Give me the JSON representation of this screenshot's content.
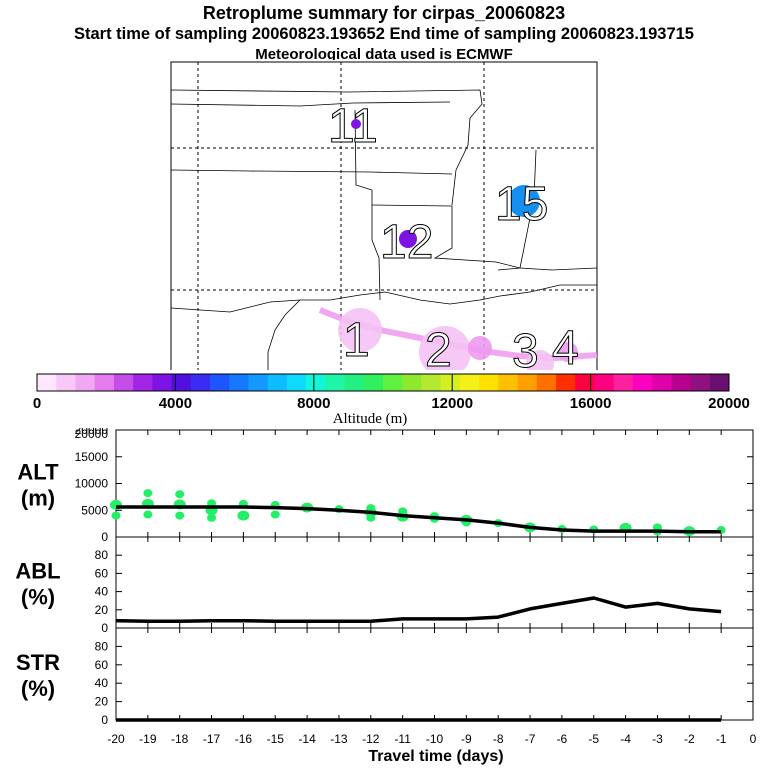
{
  "header": {
    "title": "Retroplume summary for cirpas_20060823",
    "sampling_line": "Start time of sampling 20060823.193652     End time of sampling 20060823.193715",
    "met_line": "Meteorological data used is ECMWF"
  },
  "map": {
    "day_markers": [
      "11",
      "12",
      "15",
      "1",
      "2",
      "3",
      "4"
    ],
    "track_color": "#ee99ee"
  },
  "colorbar": {
    "colors": [
      "#ffe6ff",
      "#f9c8f9",
      "#f0a8f4",
      "#e47cee",
      "#c64ee8",
      "#a225e6",
      "#7d14e4",
      "#5010e0",
      "#3a2cf2",
      "#1f55ff",
      "#1677ff",
      "#1598ff",
      "#0ebbff",
      "#0ddcff",
      "#12f5d8",
      "#1ef5a8",
      "#22f080",
      "#30f060",
      "#60f040",
      "#8ee830",
      "#b5e830",
      "#d4f020",
      "#f4f01a",
      "#ffe000",
      "#ffc000",
      "#ffa000",
      "#ff7000",
      "#ff3000",
      "#ff0040",
      "#ff0080",
      "#ff20a0",
      "#ff00c0",
      "#e000a8",
      "#b80090",
      "#901080",
      "#6a1070"
    ],
    "tick_labels": [
      "0",
      "4000",
      "8000",
      "12000",
      "16000",
      "20000"
    ],
    "axis_label": "Altitude (m)"
  },
  "chart_data": [
    {
      "type": "scatter+line",
      "name": "ALT",
      "ylabel": "ALT",
      "yunit": "(m)",
      "ylim": [
        0,
        20000
      ],
      "yticks": [
        0,
        5000,
        10000,
        15000,
        20000
      ],
      "line": {
        "x": [
          -20,
          -19,
          -18,
          -17,
          -16,
          -15,
          -14,
          -13,
          -12,
          -11,
          -10,
          -9,
          -8,
          -7,
          -6,
          -5,
          -4,
          -3,
          -2,
          -1
        ],
        "y": [
          5600,
          5600,
          5600,
          5600,
          5600,
          5500,
          5300,
          5000,
          4600,
          4000,
          3600,
          3200,
          2600,
          1800,
          1300,
          1100,
          1100,
          1100,
          1000,
          1000
        ]
      },
      "points": {
        "x": [
          -20,
          -20,
          -19,
          -19,
          -19,
          -18,
          -18,
          -18,
          -17,
          -17,
          -17,
          -16,
          -16,
          -15,
          -15,
          -14,
          -13,
          -12,
          -12,
          -12,
          -11,
          -11,
          -10,
          -10,
          -9,
          -9,
          -8,
          -7,
          -6,
          -5,
          -4,
          -3,
          -3,
          -2,
          -1
        ],
        "y": [
          6000,
          4000,
          8200,
          6200,
          4200,
          8000,
          6100,
          4000,
          6300,
          5000,
          3600,
          6200,
          4000,
          6000,
          4200,
          5500,
          5200,
          5400,
          4600,
          3600,
          4800,
          3800,
          3900,
          3400,
          3200,
          2700,
          2600,
          1800,
          1500,
          1400,
          1700,
          1800,
          1000,
          1100,
          1300
        ],
        "color": "#22ee66"
      }
    },
    {
      "type": "line",
      "name": "ABL",
      "ylabel": "ABL",
      "yunit": "(%)",
      "ylim": [
        0,
        100
      ],
      "yticks": [
        0,
        20,
        40,
        60,
        80
      ],
      "x": [
        -20,
        -19,
        -18,
        -17,
        -16,
        -15,
        -14,
        -13,
        -12,
        -11,
        -10,
        -9,
        -8,
        -7,
        -6,
        -5,
        -4,
        -3,
        -2,
        -1
      ],
      "y": [
        8,
        7.5,
        7.5,
        8,
        8,
        7.5,
        7.5,
        7.5,
        7.5,
        10,
        10,
        10,
        12,
        21,
        27,
        33,
        23,
        27,
        21,
        18
      ]
    },
    {
      "type": "line",
      "name": "STR",
      "ylabel": "STR",
      "yunit": "(%)",
      "ylim": [
        0,
        100
      ],
      "yticks": [
        0,
        20,
        40,
        60,
        80
      ],
      "x": [
        -20,
        -19,
        -18,
        -17,
        -16,
        -15,
        -14,
        -13,
        -12,
        -11,
        -10,
        -9,
        -8,
        -7,
        -6,
        -5,
        -4,
        -3,
        -2,
        -1
      ],
      "y": [
        0,
        0,
        0,
        0,
        0,
        0,
        0,
        0,
        0,
        0,
        0,
        0,
        0,
        0,
        0,
        0,
        0,
        0,
        0,
        0
      ]
    }
  ],
  "xaxis": {
    "label": "Travel time (days)",
    "xlim": [
      -20,
      0
    ],
    "tick_labels": [
      "-20",
      "-19",
      "-18",
      "-17",
      "-16",
      "-15",
      "-14",
      "-13",
      "-12",
      "-11",
      "-10",
      "-9",
      "-8",
      "-7",
      "-6",
      "-5",
      "-4",
      "-3",
      "-2",
      "-1",
      "0"
    ]
  }
}
